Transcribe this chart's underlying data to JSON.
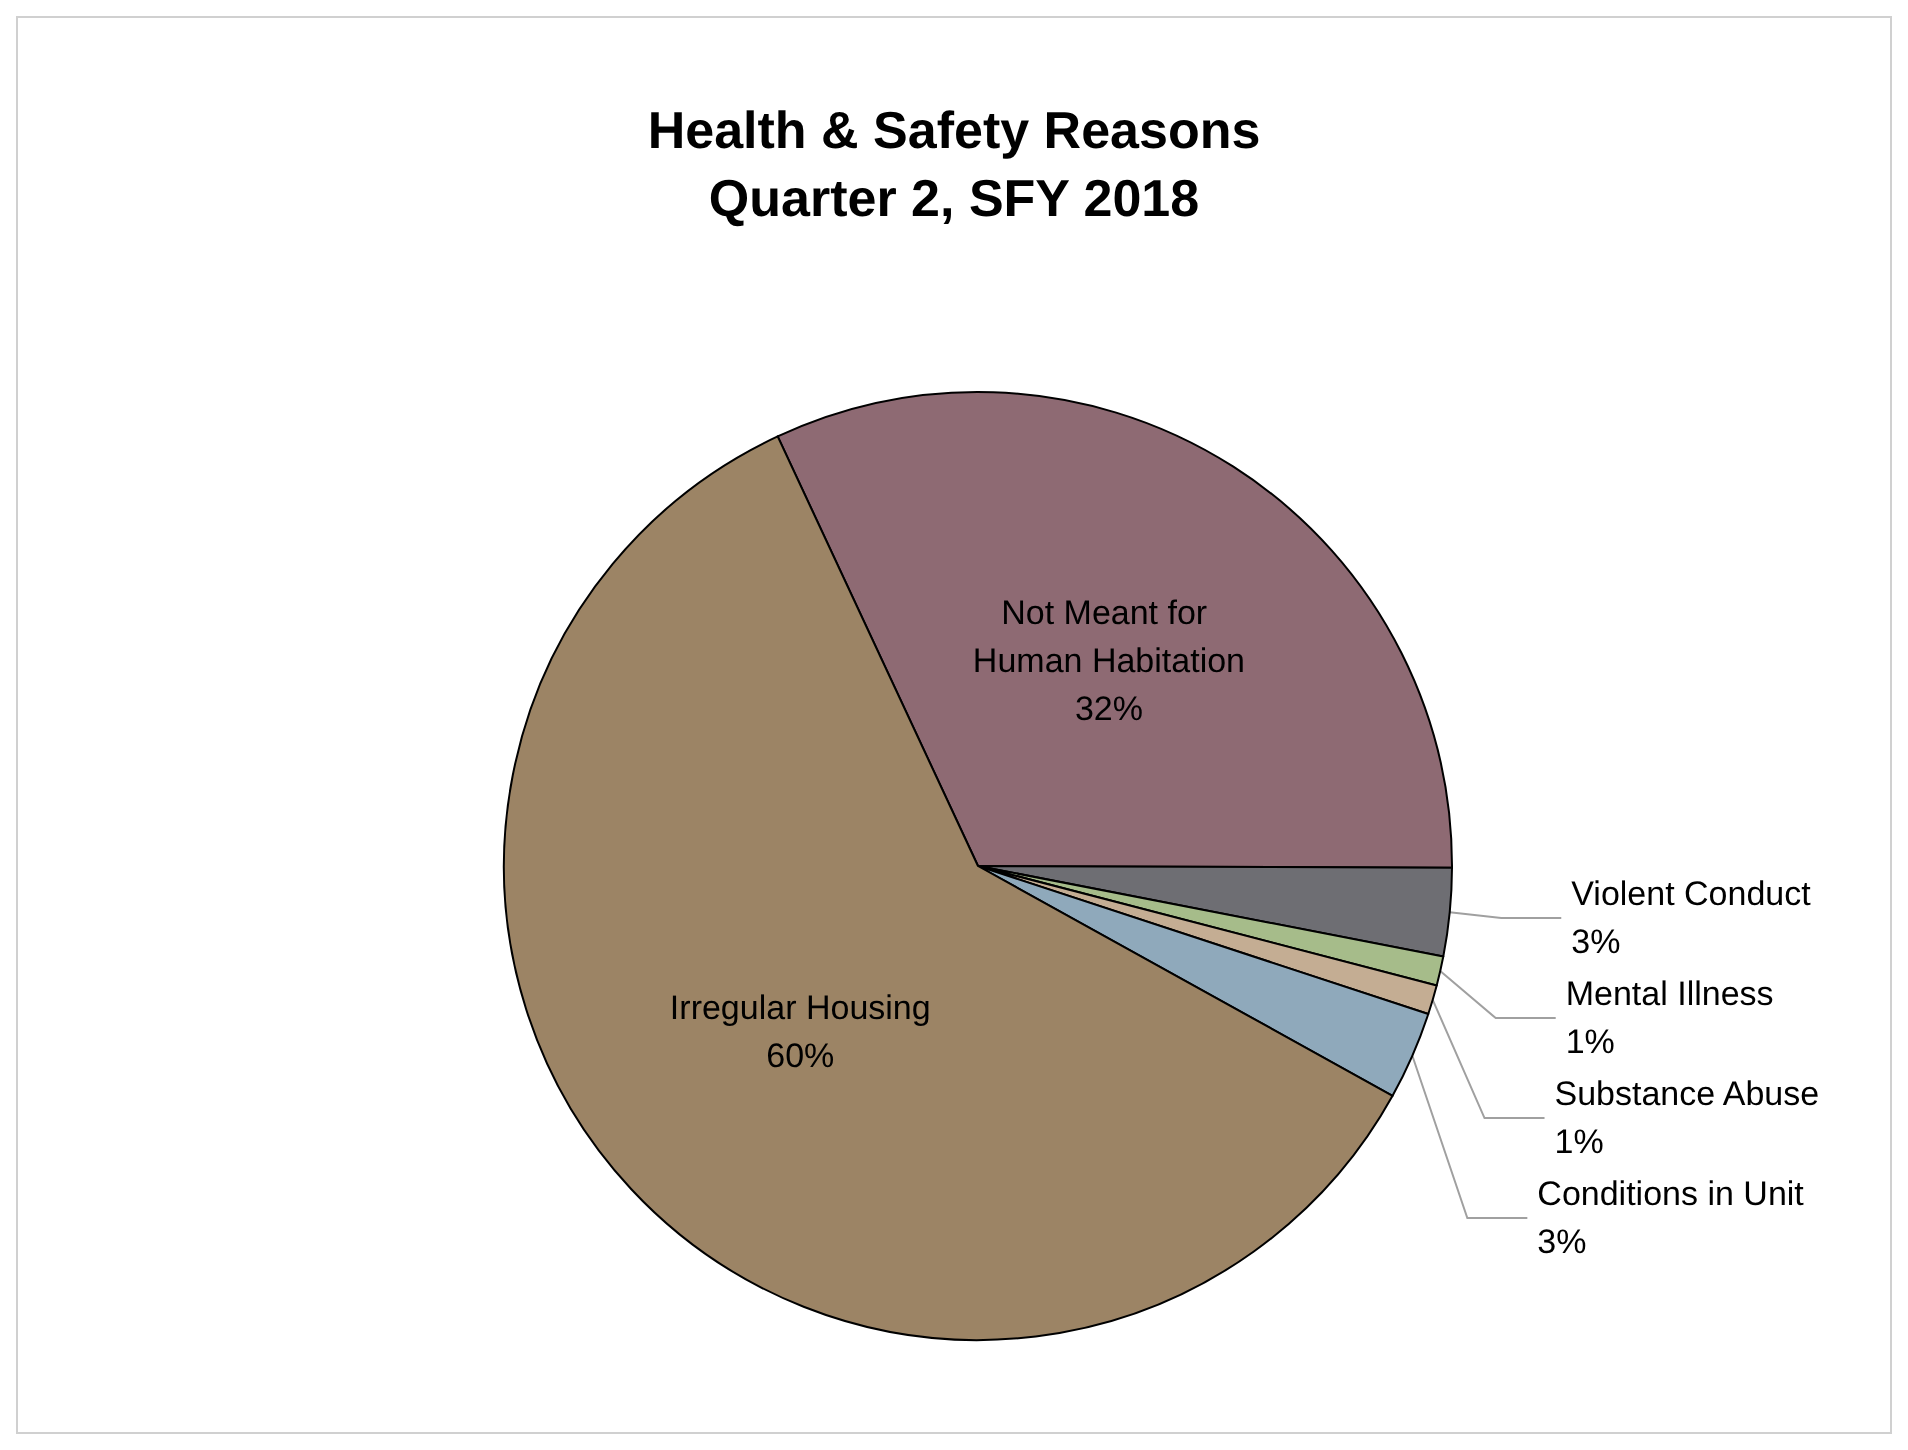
{
  "chart_data": {
    "type": "pie",
    "title": "Health & Safety Reasons",
    "subtitle": "Quarter 2, SFY 2018",
    "categories": [
      "Not Meant for Human Habitation",
      "Violent Conduct",
      "Mental Illness",
      "Substance Abuse",
      "Conditions in Unit",
      "Irregular Housing"
    ],
    "values": [
      32,
      3,
      1,
      1,
      3,
      60
    ],
    "value_labels": [
      "32%",
      "3%",
      "1%",
      "1%",
      "3%",
      "60%"
    ],
    "colors": [
      "#8e6a73",
      "#6e6e73",
      "#a6bc8a",
      "#c4ad93",
      "#8fa9bb",
      "#9c8465"
    ],
    "legend": false
  }
}
